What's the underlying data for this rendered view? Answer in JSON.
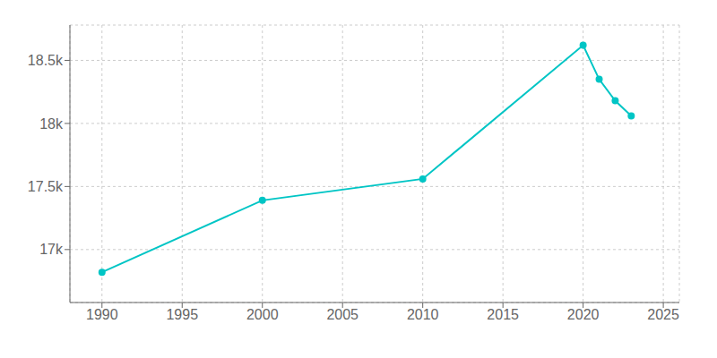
{
  "chart_data": {
    "type": "line",
    "x": [
      1990,
      2000,
      2010,
      2020,
      2021,
      2022,
      2023
    ],
    "values": [
      16820,
      17390,
      17560,
      18620,
      18350,
      18180,
      18060
    ],
    "color": "#00C5C5",
    "marker": "circle",
    "xlim": [
      1988,
      2026
    ],
    "ylim": [
      16580,
      18780
    ],
    "xticks": [
      1990,
      1995,
      2000,
      2005,
      2010,
      2015,
      2020,
      2025
    ],
    "yticks": [
      {
        "value": 17000,
        "label": "17k"
      },
      {
        "value": 17500,
        "label": "17.5k"
      },
      {
        "value": 18000,
        "label": "18k"
      },
      {
        "value": 18500,
        "label": "18.5k"
      }
    ],
    "grid": true
  }
}
